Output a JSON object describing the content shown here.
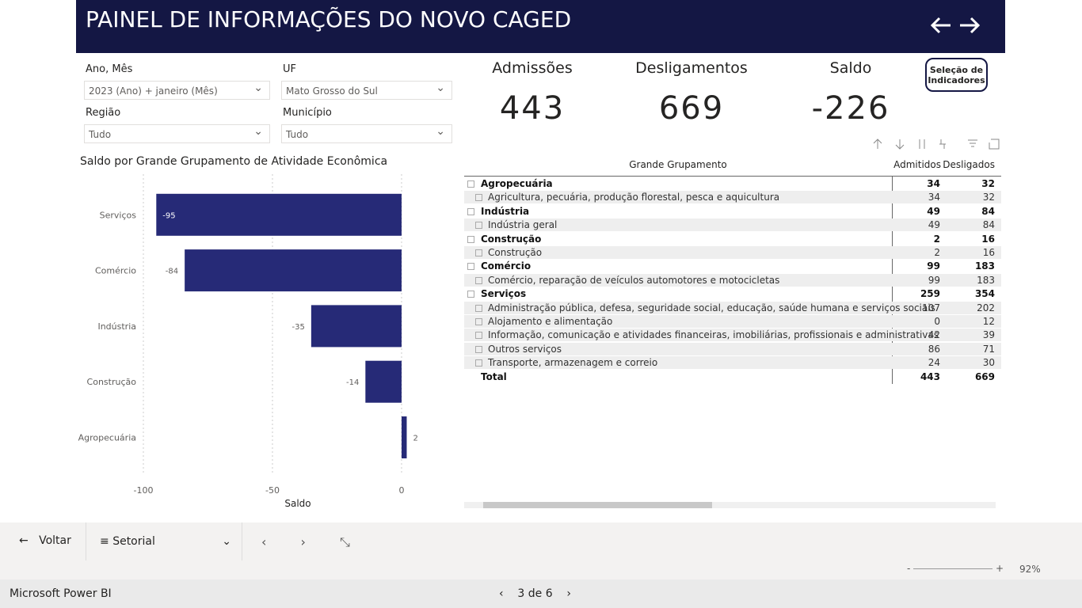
{
  "header": {
    "title": "PAINEL DE INFORMAÇÕES DO NOVO CAGED"
  },
  "filters": [
    {
      "label": "Ano, Mês",
      "value": "2023 (Ano) + janeiro (Mês)"
    },
    {
      "label": "UF",
      "value": "Mato Grosso do Sul"
    },
    {
      "label": "Região",
      "value": "Tudo"
    },
    {
      "label": "Município",
      "value": "Tudo"
    }
  ],
  "kpis": [
    {
      "label": "Admissões",
      "value": 443
    },
    {
      "label": "Desligamentos",
      "value": 669
    },
    {
      "label": "Saldo",
      "value": -226
    }
  ],
  "button": "Seleção de Indicadores",
  "chart_data": {
    "type": "bar",
    "orientation": "horizontal",
    "title": "Saldo por Grande Grupamento de Atividade Econômica",
    "x_label": "Saldo",
    "categories": [
      "Serviços",
      "Comércio",
      "Indústria",
      "Construção",
      "Agropecuária"
    ],
    "values": [
      -95,
      -84,
      -35,
      -14,
      2
    ],
    "color": "#262a77",
    "xlim": [
      -100,
      4
    ],
    "xticks": [
      -100,
      -50,
      0
    ],
    "grid": true
  },
  "table": {
    "headers": [
      "Grande Grupamento",
      "Admitidos",
      "Desligados"
    ],
    "groups": [
      {
        "name": "Agropecuária",
        "admitidos": 34,
        "desligados": 32,
        "children": [
          {
            "name": "Agricultura, pecuária, produção florestal, pesca e aquicultura",
            "admitidos": 34,
            "desligados": 32
          }
        ]
      },
      {
        "name": "Indústria",
        "admitidos": 49,
        "desligados": 84,
        "children": [
          {
            "name": "Indústria geral",
            "admitidos": 49,
            "desligados": 84
          }
        ]
      },
      {
        "name": "Construção",
        "admitidos": 2,
        "desligados": 16,
        "children": [
          {
            "name": "Construção",
            "admitidos": 2,
            "desligados": 16
          }
        ]
      },
      {
        "name": "Comércio",
        "admitidos": 99,
        "desligados": 183,
        "children": [
          {
            "name": "Comércio, reparação de veículos automotores e motocicletas",
            "admitidos": 99,
            "desligados": 183
          }
        ]
      },
      {
        "name": "Serviços",
        "admitidos": 259,
        "desligados": 354,
        "children": [
          {
            "name": "Administração pública, defesa, seguridade social, educação, saúde humana e serviços sociais",
            "admitidos": 107,
            "desligados": 202
          },
          {
            "name": "Alojamento e alimentação",
            "admitidos": 0,
            "desligados": 12
          },
          {
            "name": "Informação, comunicação e atividades financeiras, imobiliárias, profissionais e administrativas",
            "admitidos": 42,
            "desligados": 39
          },
          {
            "name": "Outros serviços",
            "admitidos": 86,
            "desligados": 71
          },
          {
            "name": "Transporte, armazenagem e correio",
            "admitidos": 24,
            "desligados": 30
          }
        ]
      }
    ],
    "total": {
      "name": "Total",
      "admitidos": 443,
      "desligados": 669
    }
  },
  "nav": {
    "back": "Voltar",
    "page": "Setorial"
  },
  "zoom": "92%",
  "footer": {
    "app": "Microsoft Power BI",
    "pages": "3 de 6"
  }
}
